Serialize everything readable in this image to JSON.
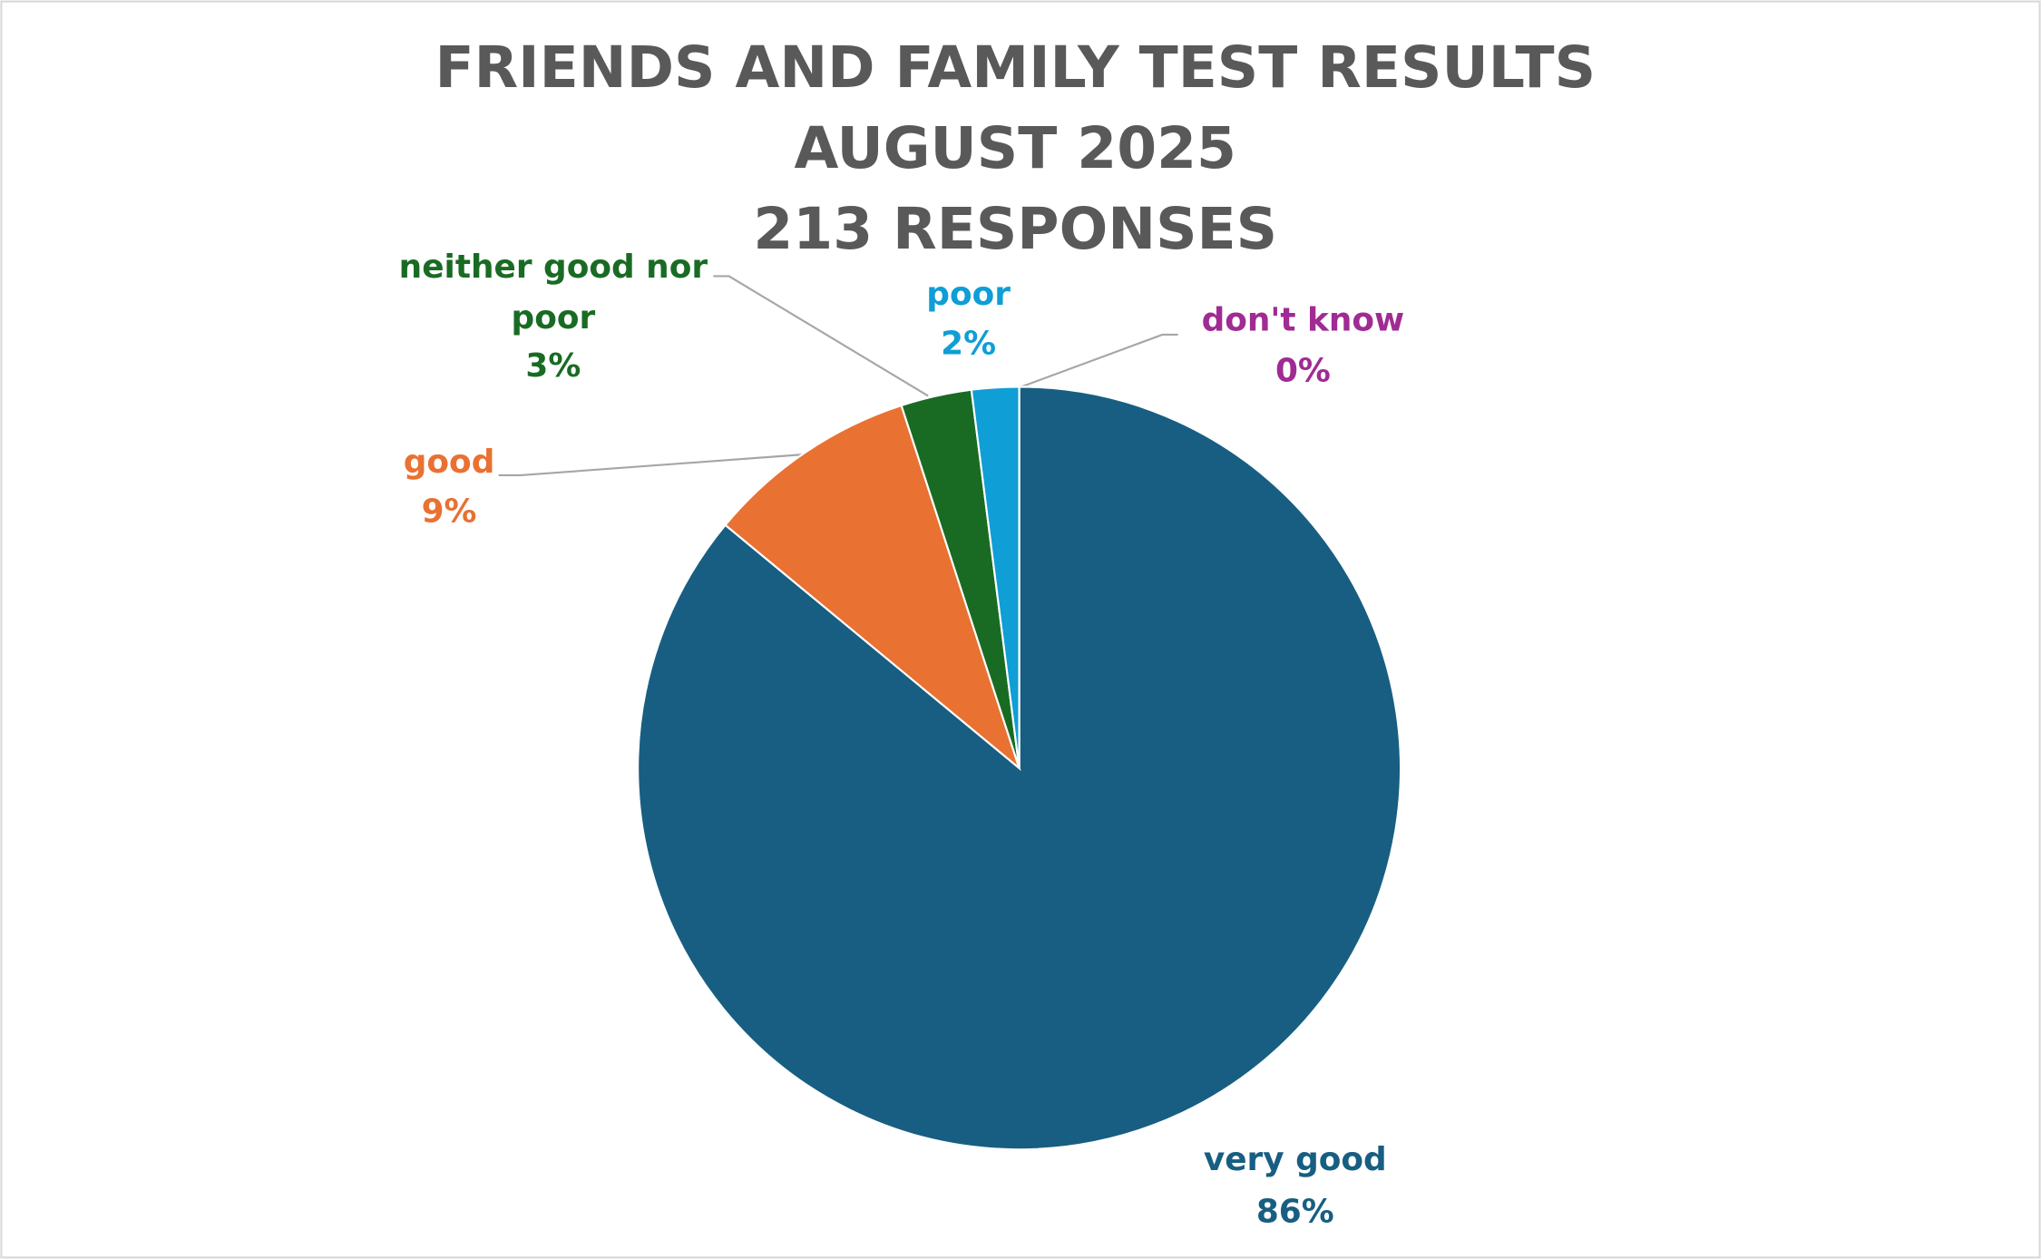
{
  "chart_data": {
    "type": "pie",
    "title": [
      "FRIENDS AND FAMILY TEST RESULTS",
      "AUGUST 2025",
      "213 RESPONSES"
    ],
    "categories": [
      "very good",
      "good",
      "neither good nor poor",
      "poor",
      "don't know"
    ],
    "values": [
      86,
      9,
      3,
      2,
      0
    ],
    "value_labels": [
      "86%",
      "9%",
      "3%",
      "2%",
      "0%"
    ],
    "colors": [
      "#175e82",
      "#e97132",
      "#196b24",
      "#0f9ed5",
      "#a02b93"
    ]
  }
}
